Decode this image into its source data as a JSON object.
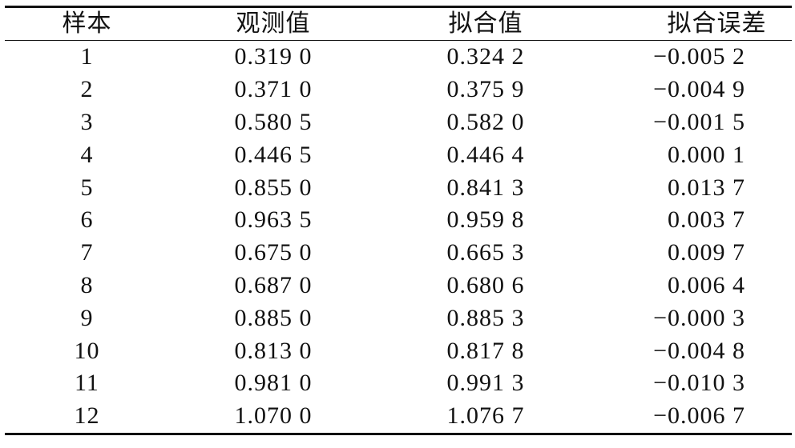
{
  "table": {
    "header": [
      "样本",
      "观测值",
      "拟合值",
      "拟合误差"
    ],
    "rows": [
      [
        "1",
        "0.319 0",
        "0.324 2",
        "−0.005 2"
      ],
      [
        "2",
        "0.371 0",
        "0.375 9",
        "−0.004 9"
      ],
      [
        "3",
        "0.580 5",
        "0.582 0",
        "−0.001 5"
      ],
      [
        "4",
        "0.446 5",
        "0.446 4",
        "0.000 1"
      ],
      [
        "5",
        "0.855 0",
        "0.841 3",
        "0.013 7"
      ],
      [
        "6",
        "0.963 5",
        "0.959 8",
        "0.003 7"
      ],
      [
        "7",
        "0.675 0",
        "0.665 3",
        "0.009 7"
      ],
      [
        "8",
        "0.687 0",
        "0.680 6",
        "0.006 4"
      ],
      [
        "9",
        "0.885 0",
        "0.885 3",
        "−0.000 3"
      ],
      [
        "10",
        "0.813 0",
        "0.817 8",
        "−0.004 8"
      ],
      [
        "11",
        "0.981 0",
        "0.991 3",
        "−0.010 3"
      ],
      [
        "12",
        "1.070 0",
        "1.076 7",
        "−0.006 7"
      ]
    ]
  }
}
